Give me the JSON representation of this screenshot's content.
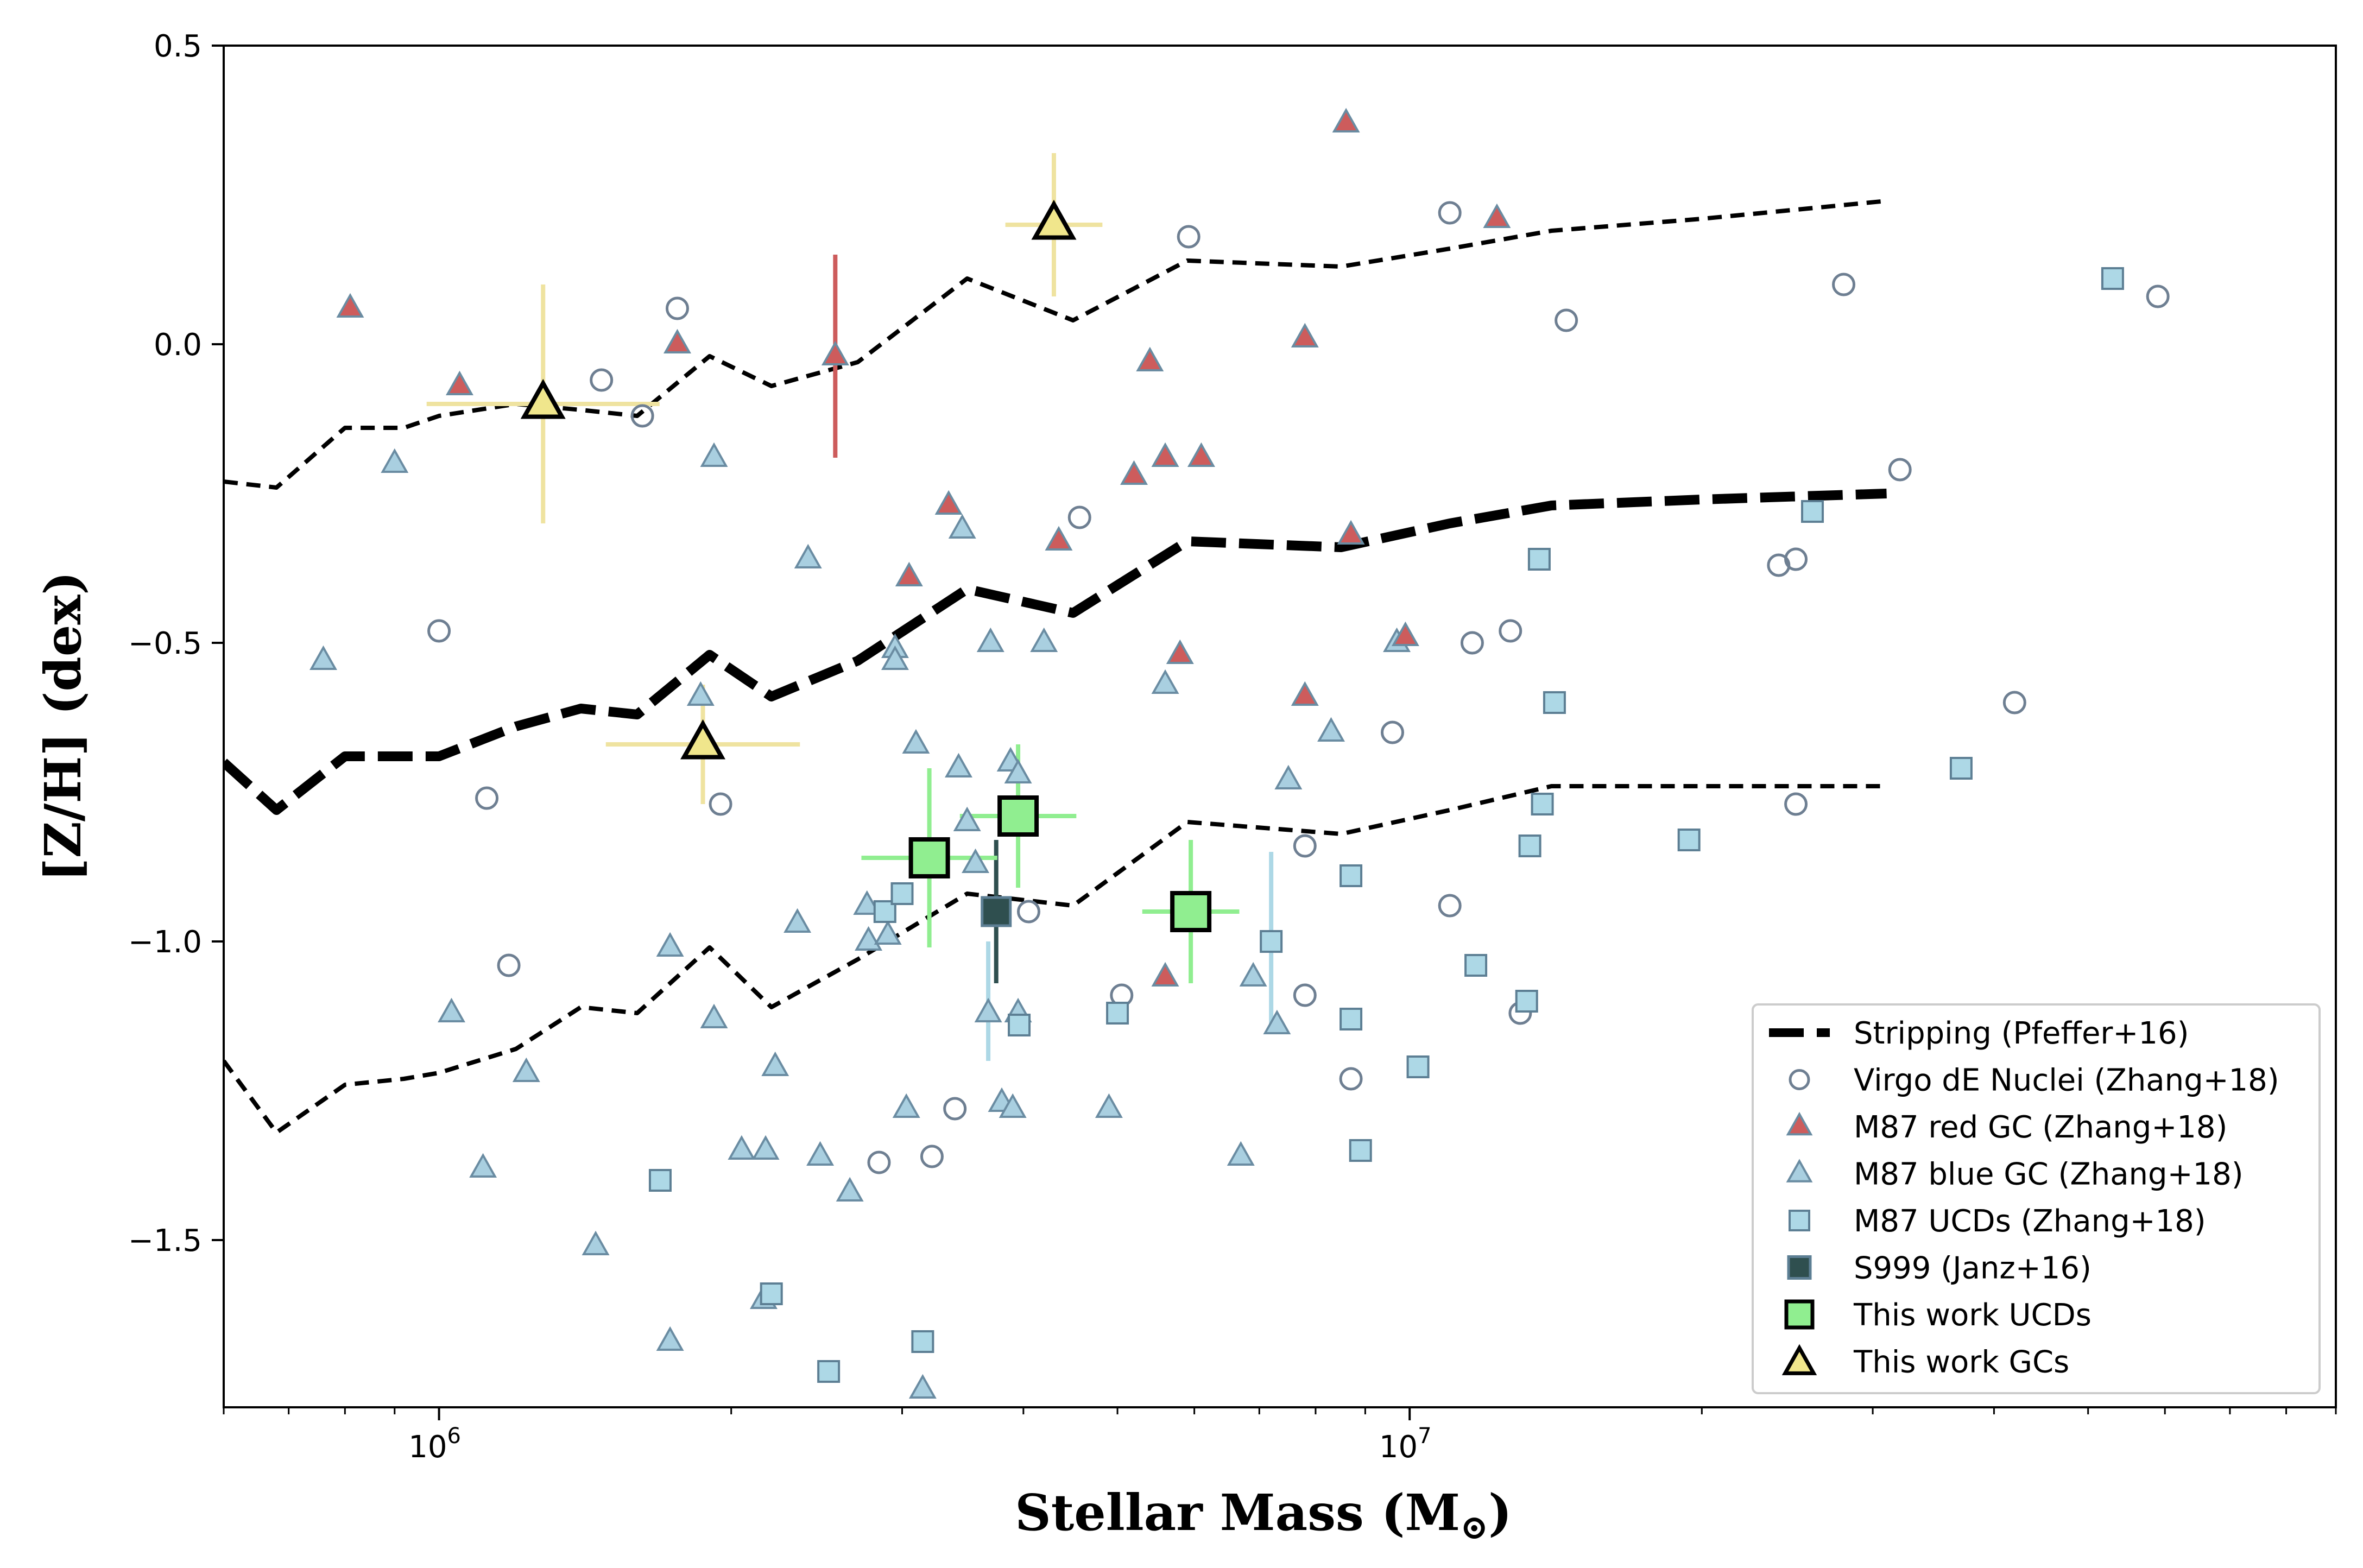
{
  "chart_data": {
    "type": "scatter",
    "title": "",
    "xlabel": "Stellar Mass (M",
    "xlabel_sub": "⊙",
    "xlabel_close": ")",
    "ylabel": "[Z/H] (dex)",
    "xscale": "log",
    "xlim": [
      600000,
      90000000
    ],
    "ylim": [
      -1.78,
      0.5
    ],
    "x_ticks": [
      {
        "value": 1000000,
        "base": "10",
        "exp": "6"
      },
      {
        "value": 10000000,
        "base": "10",
        "exp": "7"
      }
    ],
    "y_ticks": [
      {
        "value": 0.5,
        "label": "0.5"
      },
      {
        "value": 0.0,
        "label": "0.0"
      },
      {
        "value": -0.5,
        "label": "−0.5"
      },
      {
        "value": -1.0,
        "label": "−1.0"
      },
      {
        "value": -1.5,
        "label": "−1.5"
      }
    ],
    "colors": {
      "dE": "#6e7f92",
      "red_gc": "#cd5c5c",
      "blue_gc": "#a9cfe0",
      "blue_gc_edge": "#6a8ca2",
      "ucd": "#add8e6",
      "ucd_edge": "#5d7f94",
      "s999": "#2f4f4f",
      "this_ucd": "#90ee90",
      "this_gc": "#f0e68c",
      "this_gc_err": "#efe3a0",
      "red_err": "#cd5c5c",
      "ucd_err": "#add8e6"
    },
    "lines": [
      {
        "name": "Stripping upper",
        "points": [
          [
            600000,
            -0.23
          ],
          [
            680000,
            -0.24
          ],
          [
            800000,
            -0.14
          ],
          [
            920000,
            -0.14
          ],
          [
            1000000,
            -0.12
          ],
          [
            1200000,
            -0.1
          ],
          [
            1400000,
            -0.11
          ],
          [
            1600000,
            -0.12
          ],
          [
            1900000,
            -0.02
          ],
          [
            2200000,
            -0.07
          ],
          [
            2700000,
            -0.03
          ],
          [
            3500000,
            0.11
          ],
          [
            4500000,
            0.04
          ],
          [
            5900000,
            0.14
          ],
          [
            8500000,
            0.13
          ],
          [
            11000000,
            0.16
          ],
          [
            14000000,
            0.19
          ],
          [
            20000000,
            0.21
          ],
          [
            31000000,
            0.24
          ]
        ]
      },
      {
        "name": "Stripping (Pfeffer+16)",
        "points": [
          [
            600000,
            -0.7
          ],
          [
            680000,
            -0.78
          ],
          [
            800000,
            -0.69
          ],
          [
            920000,
            -0.69
          ],
          [
            1000000,
            -0.69
          ],
          [
            1200000,
            -0.64
          ],
          [
            1400000,
            -0.61
          ],
          [
            1600000,
            -0.62
          ],
          [
            1900000,
            -0.52
          ],
          [
            2200000,
            -0.59
          ],
          [
            2700000,
            -0.53
          ],
          [
            3500000,
            -0.41
          ],
          [
            4500000,
            -0.45
          ],
          [
            5900000,
            -0.33
          ],
          [
            8500000,
            -0.34
          ],
          [
            11000000,
            -0.3
          ],
          [
            14000000,
            -0.27
          ],
          [
            20000000,
            -0.26
          ],
          [
            31000000,
            -0.25
          ]
        ]
      },
      {
        "name": "Stripping lower",
        "points": [
          [
            600000,
            -1.2
          ],
          [
            680000,
            -1.32
          ],
          [
            800000,
            -1.24
          ],
          [
            920000,
            -1.23
          ],
          [
            1000000,
            -1.22
          ],
          [
            1200000,
            -1.18
          ],
          [
            1400000,
            -1.11
          ],
          [
            1600000,
            -1.12
          ],
          [
            1900000,
            -1.01
          ],
          [
            2200000,
            -1.11
          ],
          [
            2700000,
            -1.03
          ],
          [
            3500000,
            -0.92
          ],
          [
            4500000,
            -0.94
          ],
          [
            5900000,
            -0.8
          ],
          [
            8500000,
            -0.82
          ],
          [
            11000000,
            -0.78
          ],
          [
            14000000,
            -0.74
          ],
          [
            20000000,
            -0.74
          ],
          [
            31000000,
            -0.74
          ]
        ]
      }
    ],
    "series": [
      {
        "name": "Virgo dE Nuclei (Zhang+18)",
        "marker": "circle",
        "points": [
          [
            1000000,
            -0.48
          ],
          [
            1120000,
            -0.76
          ],
          [
            1180000,
            -1.04
          ],
          [
            1470000,
            -0.06
          ],
          [
            1620000,
            -0.12
          ],
          [
            1760000,
            0.06
          ],
          [
            1950000,
            -0.77
          ],
          [
            2840000,
            -1.37
          ],
          [
            3220000,
            -1.36
          ],
          [
            3400000,
            -1.28
          ],
          [
            4050000,
            -0.95
          ],
          [
            4570000,
            -0.29
          ],
          [
            5050000,
            -1.09
          ],
          [
            5920000,
            0.18
          ],
          [
            7800000,
            -0.84
          ],
          [
            7800000,
            -1.09
          ],
          [
            8700000,
            -1.23
          ],
          [
            9600000,
            -0.65
          ],
          [
            11000000,
            0.22
          ],
          [
            11000000,
            -0.94
          ],
          [
            11600000,
            -0.5
          ],
          [
            12700000,
            -0.48
          ],
          [
            13000000,
            -1.12
          ],
          [
            14500000,
            0.04
          ],
          [
            24000000,
            -0.37
          ],
          [
            25000000,
            -0.36
          ],
          [
            25000000,
            -0.77
          ],
          [
            28000000,
            0.1
          ],
          [
            32000000,
            -0.21
          ],
          [
            42000000,
            -0.6
          ],
          [
            59000000,
            0.08
          ]
        ]
      },
      {
        "name": "M87 red GC (Zhang+18)",
        "marker": "triangle",
        "points": [
          [
            810000,
            0.06
          ],
          [
            1050000,
            -0.07
          ],
          [
            1760000,
            0.0
          ],
          [
            2560000,
            -0.02
          ],
          [
            3050000,
            -0.39
          ],
          [
            3350000,
            -0.27
          ],
          [
            4350000,
            -0.33
          ],
          [
            5200000,
            -0.22
          ],
          [
            5400000,
            -0.03
          ],
          [
            5600000,
            -0.19
          ],
          [
            5600000,
            -1.06
          ],
          [
            5800000,
            -0.52
          ],
          [
            6100000,
            -0.19
          ],
          [
            7800000,
            0.01
          ],
          [
            7800000,
            -0.59
          ],
          [
            8600000,
            0.37
          ],
          [
            8700000,
            -0.32
          ],
          [
            9900000,
            -0.49
          ],
          [
            12300000,
            0.21
          ]
        ]
      },
      {
        "name": "M87 blue GC (Zhang+18)",
        "marker": "triangle",
        "points": [
          [
            760000,
            -0.53
          ],
          [
            900000,
            -0.2
          ],
          [
            1030000,
            -1.12
          ],
          [
            1110000,
            -1.38
          ],
          [
            1230000,
            -1.22
          ],
          [
            1450000,
            -1.51
          ],
          [
            1730000,
            -1.01
          ],
          [
            1730000,
            -1.67
          ],
          [
            1860000,
            -0.59
          ],
          [
            1860000,
            -0.67
          ],
          [
            1920000,
            -0.19
          ],
          [
            1920000,
            -1.13
          ],
          [
            2050000,
            -1.35
          ],
          [
            2160000,
            -1.6
          ],
          [
            2170000,
            -1.35
          ],
          [
            2220000,
            -1.21
          ],
          [
            2340000,
            -0.97
          ],
          [
            2400000,
            -0.36
          ],
          [
            2470000,
            -1.36
          ],
          [
            2650000,
            -1.42
          ],
          [
            2760000,
            -0.94
          ],
          [
            2770000,
            -1.0
          ],
          [
            2900000,
            -0.99
          ],
          [
            2950000,
            -0.51
          ],
          [
            2950000,
            -0.53
          ],
          [
            3030000,
            -1.28
          ],
          [
            3100000,
            -0.67
          ],
          [
            3150000,
            -1.75
          ],
          [
            3430000,
            -0.71
          ],
          [
            3460000,
            -0.31
          ],
          [
            3500000,
            -0.8
          ],
          [
            3570000,
            -0.87
          ],
          [
            3680000,
            -1.12
          ],
          [
            3700000,
            -0.5
          ],
          [
            3800000,
            -1.27
          ],
          [
            3880000,
            -0.7
          ],
          [
            3900000,
            -1.28
          ],
          [
            3950000,
            -0.72
          ],
          [
            3950000,
            -1.12
          ],
          [
            4200000,
            -0.5
          ],
          [
            4900000,
            -1.28
          ],
          [
            5600000,
            -0.57
          ],
          [
            6700000,
            -1.36
          ],
          [
            6900000,
            -1.06
          ],
          [
            7300000,
            -1.14
          ],
          [
            7500000,
            -0.73
          ],
          [
            8300000,
            -0.65
          ],
          [
            9700000,
            -0.5
          ]
        ]
      },
      {
        "name": "M87 UCDs (Zhang+18)",
        "marker": "square",
        "points": [
          [
            1690000,
            -1.4
          ],
          [
            2200000,
            -1.59
          ],
          [
            2520000,
            -1.72
          ],
          [
            2880000,
            -0.95
          ],
          [
            3000000,
            -0.92
          ],
          [
            3150000,
            -1.67
          ],
          [
            3960000,
            -1.14
          ],
          [
            5000000,
            -1.12
          ],
          [
            7200000,
            -1.0
          ],
          [
            8700000,
            -0.89
          ],
          [
            8700000,
            -1.13
          ],
          [
            8900000,
            -1.35
          ],
          [
            10200000,
            -1.21
          ],
          [
            11700000,
            -1.04
          ],
          [
            13200000,
            -1.1
          ],
          [
            13300000,
            -0.84
          ],
          [
            13600000,
            -0.36
          ],
          [
            13700000,
            -0.77
          ],
          [
            14100000,
            -0.6
          ],
          [
            19400000,
            -0.83
          ],
          [
            26000000,
            -0.28
          ],
          [
            37000000,
            -0.71
          ],
          [
            53000000,
            0.11
          ]
        ]
      },
      {
        "name": "S999 (Janz+16)",
        "marker": "square",
        "points": [
          [
            3750000,
            -0.95
          ]
        ],
        "x_err": [
          0.0
        ],
        "y_err": [
          0.12
        ]
      },
      {
        "name": "This work UCDs",
        "marker": "square",
        "points": [
          [
            3200000,
            -0.86
          ],
          [
            3950000,
            -0.79
          ],
          [
            5950000,
            -0.95
          ]
        ],
        "x_err": [
          0.07,
          0.06,
          0.05
        ],
        "y_err": [
          0.15,
          0.12,
          0.12
        ]
      },
      {
        "name": "This work GCs",
        "marker": "triangle",
        "points": [
          [
            1280000,
            -0.1
          ],
          [
            1870000,
            -0.67
          ],
          [
            4300000,
            0.2
          ]
        ],
        "x_err": [
          0.12,
          0.1,
          0.05
        ],
        "y_err": [
          0.2,
          0.1,
          0.12
        ]
      }
    ],
    "extra_error_bars": [
      {
        "x": 2560000,
        "y": -0.02,
        "y_err": 0.17,
        "x_err": 0.0,
        "color_key": "red_err"
      },
      {
        "x": 3680000,
        "y": -1.1,
        "y_err": 0.1,
        "x_err": 0.0,
        "color_key": "ucd_err"
      },
      {
        "x": 7200000,
        "y": -1.0,
        "y_err": 0.15,
        "x_err": 0.0,
        "color_key": "ucd_err"
      }
    ],
    "legend": {
      "position": "lower-right",
      "entries": [
        {
          "label": "Stripping (Pfeffer+16)",
          "symbol": "line"
        },
        {
          "label": "Virgo dE Nuclei (Zhang+18)",
          "symbol": "dE"
        },
        {
          "label": "M87 red GC (Zhang+18)",
          "symbol": "red_gc"
        },
        {
          "label": "M87 blue GC (Zhang+18)",
          "symbol": "blue_gc"
        },
        {
          "label": "M87 UCDs (Zhang+18)",
          "symbol": "ucd"
        },
        {
          "label": "S999 (Janz+16)",
          "symbol": "s999"
        },
        {
          "label": "This work UCDs",
          "symbol": "this_ucd"
        },
        {
          "label": "This work GCs",
          "symbol": "this_gc"
        }
      ]
    }
  }
}
